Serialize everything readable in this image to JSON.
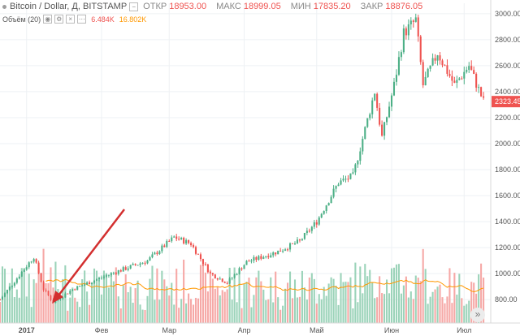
{
  "header": {
    "symbol": "Bitcoin / Dollar, Д, BITSTAMP",
    "open_label": "ОТКР",
    "open_value": "18953.00",
    "high_label": "МАКС",
    "high_value": "18999.05",
    "low_label": "МИН",
    "low_value": "17835.20",
    "close_label": "ЗАКР",
    "close_value": "18876.05"
  },
  "volume_legend": {
    "label": "Объём (20)",
    "value_red": "6.484K",
    "value_orange": "16.802K"
  },
  "colors": {
    "up": "#4caf86",
    "down": "#ef5350",
    "up_volume": "#9bd3b9",
    "down_volume": "#f6a8a6",
    "volume_ma": "#ff9800",
    "price_badge": "#ef5350",
    "arrow": "#d32f2f",
    "grid": "#eef1f4"
  },
  "icons": {
    "scroll_button": "double-chevron-right-icon"
  },
  "chart_data": {
    "type": "candlestick",
    "y_axis": {
      "ticks": [
        800,
        1000,
        1200,
        1400,
        1600,
        1800,
        2000,
        2200,
        2400,
        2600,
        2800,
        3000
      ],
      "tick_labels": [
        "800.00",
        "1000.00",
        "1200.00",
        "1400.00",
        "1600.00",
        "1800.00",
        "2000.00",
        "2200.00",
        "2400.00",
        "2600.00",
        "2800.00",
        "3000.00"
      ],
      "range": [
        620,
        3080
      ],
      "last_price_label": "2323.45",
      "last_price": 2323.45
    },
    "x_axis": {
      "labels": [
        "2017",
        "Фев",
        "Мар",
        "Апр",
        "Май",
        "Июн",
        "Июл"
      ],
      "label_dates": [
        "2017-01-01",
        "2017-02-01",
        "2017-03-01",
        "2017-04-01",
        "2017-05-01",
        "2017-06-01",
        "2017-07-01"
      ],
      "range": [
        "2016-12-21",
        "2017-07-12"
      ]
    },
    "key_points": [
      {
        "date": "2016-12-21",
        "close": 800
      },
      {
        "date": "2017-01-04",
        "close": 1130
      },
      {
        "date": "2017-01-08",
        "close": 880
      },
      {
        "date": "2017-01-12",
        "close": 780
      },
      {
        "date": "2017-01-20",
        "close": 880
      },
      {
        "date": "2017-02-05",
        "close": 1000
      },
      {
        "date": "2017-02-20",
        "close": 1100
      },
      {
        "date": "2017-03-03",
        "close": 1280
      },
      {
        "date": "2017-03-10",
        "close": 1230
      },
      {
        "date": "2017-03-18",
        "close": 1000
      },
      {
        "date": "2017-03-25",
        "close": 930
      },
      {
        "date": "2017-04-02",
        "close": 1090
      },
      {
        "date": "2017-04-15",
        "close": 1170
      },
      {
        "date": "2017-04-24",
        "close": 1250
      },
      {
        "date": "2017-05-01",
        "close": 1400
      },
      {
        "date": "2017-05-10",
        "close": 1700
      },
      {
        "date": "2017-05-16",
        "close": 1750
      },
      {
        "date": "2017-05-25",
        "close": 2400
      },
      {
        "date": "2017-05-28",
        "close": 2050
      },
      {
        "date": "2017-06-02",
        "close": 2450
      },
      {
        "date": "2017-06-06",
        "close": 2850
      },
      {
        "date": "2017-06-11",
        "close": 2950
      },
      {
        "date": "2017-06-14",
        "close": 2450
      },
      {
        "date": "2017-06-20",
        "close": 2700
      },
      {
        "date": "2017-06-27",
        "close": 2450
      },
      {
        "date": "2017-07-03",
        "close": 2600
      },
      {
        "date": "2017-07-09",
        "close": 2323.45
      }
    ],
    "volume_scale": {
      "max": 16802
    }
  }
}
